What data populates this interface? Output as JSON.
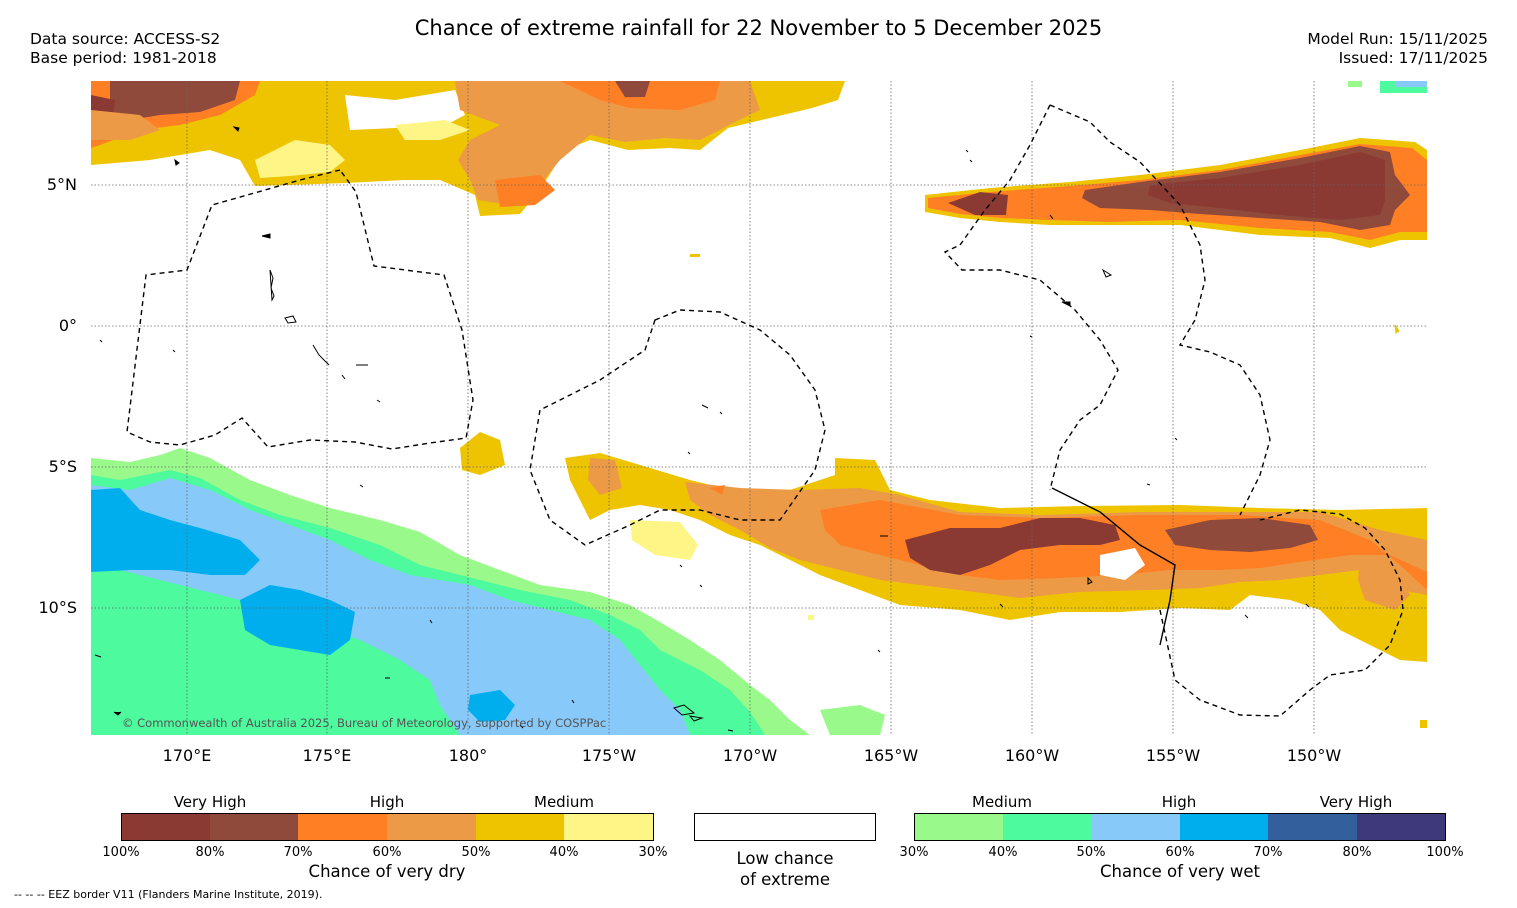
{
  "title": "Chance of extreme rainfall for 22 November to 5 December 2025",
  "meta": {
    "data_source": "Data source: ACCESS-S2",
    "base_period": "Base period: 1981-2018",
    "model_run": "Model Run: 15/11/2025",
    "issued": "Issued: 17/11/2025"
  },
  "map": {
    "lat_labels": [
      "5°N",
      "0°",
      "5°S",
      "10°S"
    ],
    "lon_labels": [
      "170°E",
      "175°E",
      "180°",
      "175°W",
      "170°W",
      "165°W",
      "160°W",
      "155°W",
      "150°W"
    ],
    "copyright": "© Commonwealth of Australia 2025, Bureau of Meteorology, supported by COSPPac"
  },
  "legend": {
    "dry": {
      "headers": [
        "Very High",
        "High",
        "Medium"
      ],
      "ticks": [
        "100%",
        "80%",
        "70%",
        "60%",
        "50%",
        "40%",
        "30%"
      ],
      "colors": [
        "#8b3a33",
        "#8f4a3c",
        "#ff7f24",
        "#ec9a45",
        "#eec400",
        "#fdf585"
      ],
      "caption": "Chance of very dry"
    },
    "neutral": {
      "caption_line1": "Low chance",
      "caption_line2": "of extreme"
    },
    "wet": {
      "headers": [
        "Medium",
        "High",
        "Very High"
      ],
      "ticks": [
        "30%",
        "40%",
        "50%",
        "60%",
        "70%",
        "80%",
        "100%"
      ],
      "colors": [
        "#99fa8b",
        "#4dfa9d",
        "#87cafa",
        "#00aeee",
        "#345f9d",
        "#3e3978"
      ],
      "caption": "Chance of very wet"
    },
    "eez_note": "--  --  -- EEZ border V11 (Flanders Marine Institute, 2019)."
  }
}
